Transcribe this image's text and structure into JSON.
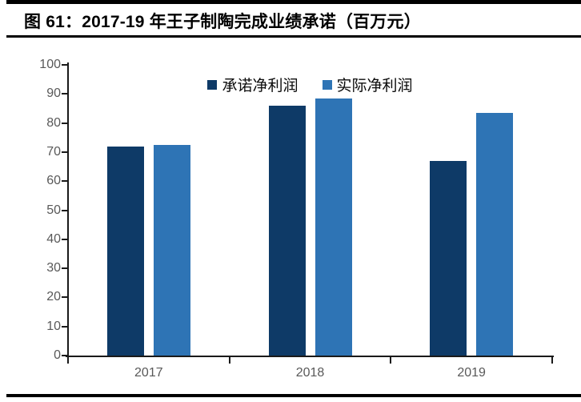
{
  "figure": {
    "title": "图 61：2017-19 年王子制陶完成业绩承诺（百万元）"
  },
  "chart_data": {
    "type": "bar",
    "title": "图 61：2017-19 年王子制陶完成业绩承诺（百万元）",
    "categories": [
      "2017",
      "2018",
      "2019"
    ],
    "series": [
      {
        "name": "承诺净利润",
        "color": "#0E3A67",
        "values": [
          72,
          86,
          67
        ]
      },
      {
        "name": "实际净利润",
        "color": "#2E74B5",
        "values": [
          72.5,
          88.5,
          83.5
        ]
      }
    ],
    "xlabel": "",
    "ylabel": "",
    "ylim": [
      0,
      100
    ],
    "ytick_step": 10,
    "grid": false,
    "legend_position": "top-center",
    "axis_color": "#1A1A1A",
    "tick_label_color": "#595959"
  }
}
